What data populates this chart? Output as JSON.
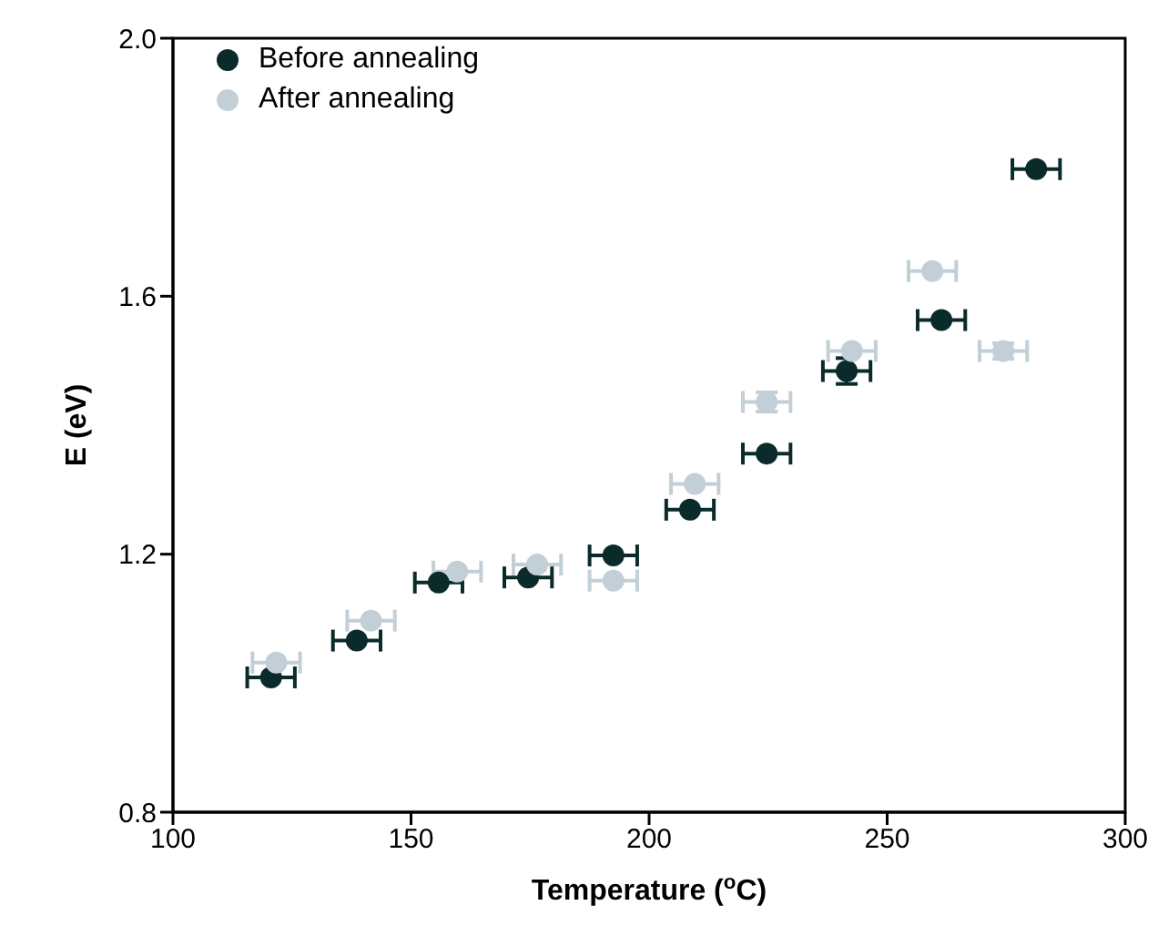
{
  "chart_data": {
    "type": "scatter",
    "xlabel": "Temperature ($^{o}$C)",
    "ylabel": "E (eV)",
    "xlim": [
      100,
      300
    ],
    "xticks": [
      100,
      150,
      200,
      250,
      300
    ],
    "ylim": [
      0.8,
      2.0
    ],
    "yticks": [
      0.8,
      1.2,
      1.6,
      {
        "value": 2.0,
        "label": "2.0"
      }
    ],
    "grid": false,
    "legend": "top left",
    "marker": "circle",
    "series": [
      {
        "name": "Before annealing",
        "color": "#0b2b2b",
        "x": [
          120.6,
          138.6,
          155.8,
          174.6,
          192.5,
          208.6,
          224.7,
          241.5,
          261.4,
          281.3
        ],
        "values": [
          1.009,
          1.066,
          1.156,
          1.164,
          1.198,
          1.269,
          1.356,
          1.484,
          1.563,
          1.797
        ],
        "xerrors": [
          5,
          5,
          5,
          5,
          5,
          5,
          5,
          5,
          5,
          5
        ],
        "errors": [
          null,
          null,
          null,
          null,
          null,
          null,
          null,
          0.02,
          null,
          null
        ]
      },
      {
        "name": "After annealing",
        "color": "#c3cfd6",
        "x": [
          121.7,
          141.6,
          159.7,
          176.5,
          192.5,
          209.6,
          224.7,
          242.6,
          259.5,
          274.4
        ],
        "values": [
          1.032,
          1.097,
          1.173,
          1.184,
          1.159,
          1.309,
          1.436,
          1.515,
          1.639,
          1.515
        ],
        "xerrors": [
          5,
          5,
          5,
          5,
          5,
          5,
          5,
          5,
          5,
          5
        ],
        "errors": [
          null,
          null,
          null,
          null,
          null,
          null,
          0.015,
          null,
          null,
          0.012
        ]
      }
    ]
  }
}
